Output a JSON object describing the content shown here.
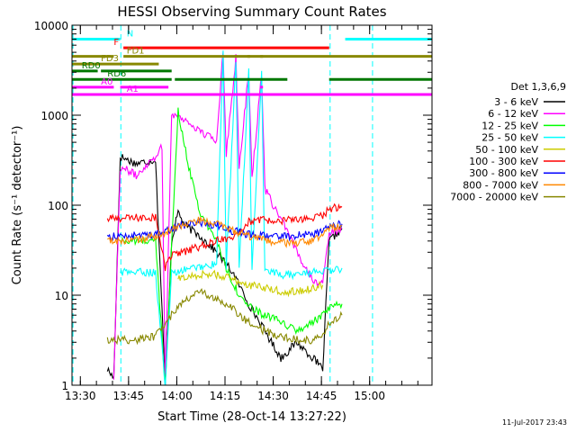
{
  "chart_data": {
    "type": "line",
    "title": "HESSI Observing Summary Count Rates",
    "xlabel": "Start Time (28-Oct-14 13:27:22)",
    "ylabel": "Count Rate (s⁻¹ detector⁻¹)",
    "yscale": "log",
    "ylim": [
      1,
      10000
    ],
    "xlim_minutes": [
      0,
      112
    ],
    "x_ticks": [
      {
        "t": 2.6,
        "label": "13:30"
      },
      {
        "t": 17.6,
        "label": "13:45"
      },
      {
        "t": 32.6,
        "label": "14:00"
      },
      {
        "t": 47.6,
        "label": "14:15"
      },
      {
        "t": 62.6,
        "label": "14:30"
      },
      {
        "t": 77.6,
        "label": "14:45"
      },
      {
        "t": 92.6,
        "label": "15:00"
      }
    ],
    "y_ticks": [
      {
        "v": 1,
        "label": "1"
      },
      {
        "v": 10,
        "label": "10"
      },
      {
        "v": 100,
        "label": "100"
      },
      {
        "v": 1000,
        "label": "1000"
      },
      {
        "v": 10000,
        "label": "10000"
      }
    ],
    "legend_title": "Det 1,3,6,9",
    "legend_position": "right",
    "series": [
      {
        "name": "3 - 6 keV",
        "color": "#000000",
        "points": [
          [
            11,
            1.5
          ],
          [
            13,
            1.2
          ],
          [
            15,
            350
          ],
          [
            18,
            310
          ],
          [
            20,
            290
          ],
          [
            22,
            300
          ],
          [
            26,
            320
          ],
          [
            29,
            1
          ],
          [
            31,
            40
          ],
          [
            33,
            85
          ],
          [
            35,
            60
          ],
          [
            40,
            45
          ],
          [
            45,
            30
          ],
          [
            50,
            18
          ],
          [
            55,
            8
          ],
          [
            60,
            4
          ],
          [
            65,
            2
          ],
          [
            70,
            3
          ],
          [
            75,
            2
          ],
          [
            78,
            1.5
          ],
          [
            80,
            40
          ],
          [
            84,
            55
          ]
        ]
      },
      {
        "name": "6 - 12 keV",
        "color": "#ff00ff",
        "points": [
          [
            13,
            1.2
          ],
          [
            15,
            260
          ],
          [
            18,
            240
          ],
          [
            20,
            210
          ],
          [
            23,
            280
          ],
          [
            26,
            350
          ],
          [
            28,
            450
          ],
          [
            29,
            1
          ],
          [
            31,
            1050
          ],
          [
            35,
            900
          ],
          [
            40,
            650
          ],
          [
            45,
            520
          ],
          [
            47,
            5500
          ],
          [
            48,
            380
          ],
          [
            51,
            4300
          ],
          [
            52,
            260
          ],
          [
            55,
            3100
          ],
          [
            56,
            200
          ],
          [
            59,
            2900
          ],
          [
            60,
            150
          ],
          [
            65,
            70
          ],
          [
            70,
            30
          ],
          [
            75,
            15
          ],
          [
            78,
            13
          ],
          [
            80,
            50
          ],
          [
            84,
            55
          ]
        ]
      },
      {
        "name": "12 - 25 keV",
        "color": "#00ff00",
        "points": [
          [
            15,
            40
          ],
          [
            20,
            40
          ],
          [
            26,
            40
          ],
          [
            29,
            1
          ],
          [
            31,
            35
          ],
          [
            33,
            1100
          ],
          [
            36,
            300
          ],
          [
            40,
            80
          ],
          [
            45,
            40
          ],
          [
            48,
            20
          ],
          [
            52,
            10
          ],
          [
            56,
            7
          ],
          [
            60,
            6
          ],
          [
            65,
            5
          ],
          [
            70,
            4
          ],
          [
            75,
            5
          ],
          [
            78,
            6
          ],
          [
            80,
            7
          ],
          [
            84,
            8
          ]
        ]
      },
      {
        "name": "25 - 50 keV",
        "color": "#00ffff",
        "points": [
          [
            15,
            18
          ],
          [
            20,
            18
          ],
          [
            26,
            18
          ],
          [
            29,
            1
          ],
          [
            31,
            18
          ],
          [
            35,
            19
          ],
          [
            40,
            21
          ],
          [
            45,
            22
          ],
          [
            47,
            5500
          ],
          [
            48,
            21
          ],
          [
            51,
            4300
          ],
          [
            52,
            20
          ],
          [
            55,
            3100
          ],
          [
            56,
            19
          ],
          [
            59,
            2800
          ],
          [
            60,
            18
          ],
          [
            65,
            17
          ],
          [
            70,
            17
          ],
          [
            75,
            18
          ],
          [
            78,
            19
          ],
          [
            80,
            18
          ],
          [
            84,
            20
          ]
        ]
      },
      {
        "name": "50 - 100 keV",
        "color": "#cccc00",
        "points": [
          [
            33,
            15
          ],
          [
            36,
            16
          ],
          [
            40,
            17
          ],
          [
            45,
            17
          ],
          [
            50,
            15
          ],
          [
            55,
            13
          ],
          [
            60,
            12
          ],
          [
            65,
            11
          ],
          [
            70,
            11
          ],
          [
            75,
            12
          ],
          [
            78,
            13
          ]
        ]
      },
      {
        "name": "100 - 300 keV",
        "color": "#ff0000",
        "points": [
          [
            11,
            70
          ],
          [
            15,
            72
          ],
          [
            20,
            72
          ],
          [
            26,
            74
          ],
          [
            29,
            20
          ],
          [
            31,
            28
          ],
          [
            35,
            30
          ],
          [
            40,
            35
          ],
          [
            45,
            40
          ],
          [
            50,
            45
          ],
          [
            55,
            65
          ],
          [
            60,
            68
          ],
          [
            65,
            68
          ],
          [
            70,
            68
          ],
          [
            75,
            72
          ],
          [
            78,
            75
          ],
          [
            80,
            92
          ],
          [
            84,
            95
          ]
        ]
      },
      {
        "name": "300 - 800 keV",
        "color": "#0000ff",
        "points": [
          [
            11,
            45
          ],
          [
            15,
            45
          ],
          [
            20,
            46
          ],
          [
            26,
            48
          ],
          [
            29,
            50
          ],
          [
            31,
            55
          ],
          [
            35,
            60
          ],
          [
            40,
            65
          ],
          [
            45,
            60
          ],
          [
            50,
            52
          ],
          [
            55,
            47
          ],
          [
            60,
            45
          ],
          [
            65,
            45
          ],
          [
            70,
            46
          ],
          [
            75,
            48
          ],
          [
            78,
            52
          ],
          [
            80,
            58
          ],
          [
            84,
            62
          ]
        ]
      },
      {
        "name": "800 - 7000 keV",
        "color": "#ff8800",
        "points": [
          [
            11,
            40
          ],
          [
            15,
            40
          ],
          [
            20,
            41
          ],
          [
            26,
            45
          ],
          [
            29,
            48
          ],
          [
            31,
            55
          ],
          [
            35,
            62
          ],
          [
            40,
            68
          ],
          [
            45,
            62
          ],
          [
            50,
            52
          ],
          [
            55,
            45
          ],
          [
            60,
            40
          ],
          [
            65,
            38
          ],
          [
            70,
            38
          ],
          [
            75,
            40
          ],
          [
            78,
            45
          ],
          [
            80,
            55
          ],
          [
            84,
            60
          ]
        ]
      },
      {
        "name": "7000 - 20000 keV",
        "color": "#888800",
        "points": [
          [
            11,
            3.2
          ],
          [
            15,
            3.2
          ],
          [
            20,
            3.2
          ],
          [
            26,
            3.5
          ],
          [
            29,
            5
          ],
          [
            31,
            6
          ],
          [
            35,
            9
          ],
          [
            40,
            11
          ],
          [
            45,
            9
          ],
          [
            50,
            7
          ],
          [
            55,
            5
          ],
          [
            60,
            4
          ],
          [
            65,
            3.5
          ],
          [
            70,
            3.2
          ],
          [
            75,
            3.2
          ],
          [
            78,
            3.5
          ],
          [
            80,
            5
          ],
          [
            84,
            6
          ]
        ]
      }
    ],
    "flag_bars": [
      {
        "label": "N",
        "color": "#00ffff",
        "y": 7000,
        "segments": [
          [
            0,
            15
          ],
          [
            85,
            112
          ]
        ],
        "label_t": 17
      },
      {
        "label": "F",
        "color": "#ff0000",
        "y": 5600,
        "segments": [
          [
            16,
            80
          ]
        ],
        "label_t": 13
      },
      {
        "label": "FD1",
        "color": "#888800",
        "y": 4500,
        "segments": [
          [
            0,
            13
          ],
          [
            16,
            112
          ]
        ],
        "label_t": 17
      },
      {
        "label": "FD3",
        "color": "#888800",
        "y": 3700,
        "segments": [
          [
            0,
            27
          ]
        ],
        "label_t": 9
      },
      {
        "label": "RD0",
        "color": "#007700",
        "y": 3100,
        "segments": [
          [
            0,
            8
          ],
          [
            9,
            31
          ]
        ],
        "label_t": 3
      },
      {
        "label": "RD6",
        "color": "#007700",
        "y": 2500,
        "segments": [
          [
            0,
            31
          ],
          [
            32,
            67
          ],
          [
            80,
            112
          ]
        ],
        "label_t": 11
      },
      {
        "label": "A0",
        "color": "#ff00ff",
        "y": 2050,
        "segments": [
          [
            0,
            13
          ],
          [
            15,
            30
          ]
        ],
        "label_t": 9
      },
      {
        "label": "A1",
        "color": "#ff00ff",
        "y": 1700,
        "segments": [
          [
            0,
            112
          ]
        ],
        "label_t": 17
      }
    ],
    "flag_dots": [
      {
        "color": "#888800",
        "t": 51,
        "y": 4500
      },
      {
        "color": "#888800",
        "t": 55,
        "y": 4500
      },
      {
        "color": "#888800",
        "t": 59,
        "y": 4500
      },
      {
        "color": "#ff00ff",
        "t": 59,
        "y": 2050
      }
    ],
    "vlines": [
      {
        "t": 0.3,
        "color": "#00ffff"
      },
      {
        "t": 15.2,
        "color": "#00ffff"
      },
      {
        "t": 80.3,
        "color": "#00ffff"
      },
      {
        "t": 93.5,
        "color": "#00ffff"
      }
    ]
  },
  "footer": {
    "timestamp": "11-Jul-2017 23:43"
  }
}
